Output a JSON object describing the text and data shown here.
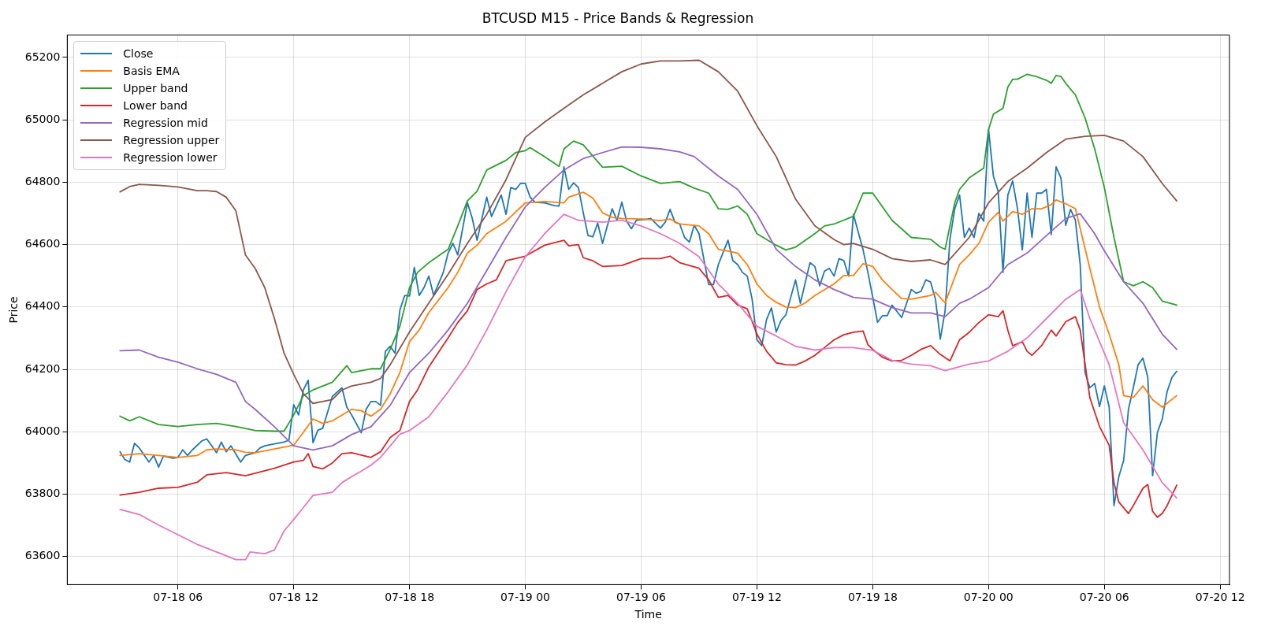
{
  "chart_data": {
    "type": "line",
    "title": "BTCUSD M15 - Price Bands & Regression",
    "xlabel": "Time",
    "ylabel": "Price",
    "xlim": [
      "--07-18T00:16",
      "--07-20T12:29"
    ],
    "ylim": [
      63510,
      65272
    ],
    "xticks": [
      {
        "value": "--07-18T06:00",
        "label": "07-18 06"
      },
      {
        "value": "--07-18T12:00",
        "label": "07-18 12"
      },
      {
        "value": "--07-18T18:00",
        "label": "07-18 18"
      },
      {
        "value": "--07-19T00:00",
        "label": "07-19 00"
      },
      {
        "value": "--07-19T06:00",
        "label": "07-19 06"
      },
      {
        "value": "--07-19T12:00",
        "label": "07-19 12"
      },
      {
        "value": "--07-19T18:00",
        "label": "07-19 18"
      },
      {
        "value": "--07-20T00:00",
        "label": "07-20 00"
      },
      {
        "value": "--07-20T06:00",
        "label": "07-20 06"
      },
      {
        "value": "--07-20T12:00",
        "label": "07-20 12"
      }
    ],
    "yticks": [
      63600,
      63800,
      64000,
      64200,
      64400,
      64600,
      64800,
      65000,
      65200
    ],
    "grid": true,
    "legend": "top left",
    "marker": "none",
    "line_style": "solid",
    "series": [
      {
        "name": "Close",
        "color": "#1f77b4",
        "x": [
          "--07-18T03:00",
          "--07-18T03:15",
          "--07-18T03:30",
          "--07-18T03:45",
          "--07-18T04:00",
          "--07-18T04:30",
          "--07-18T04:45",
          "--07-18T05:00",
          "--07-18T05:15",
          "--07-18T05:45",
          "--07-18T06:00",
          "--07-18T06:15",
          "--07-18T06:30",
          "--07-18T06:45",
          "--07-18T07:15",
          "--07-18T07:30",
          "--07-18T08:00",
          "--07-18T08:15",
          "--07-18T08:30",
          "--07-18T08:45",
          "--07-18T09:15",
          "--07-18T09:30",
          "--07-18T10:00",
          "--07-18T10:15",
          "--07-18T10:30",
          "--07-18T11:00",
          "--07-18T11:30",
          "--07-18T11:45",
          "--07-18T12:00",
          "--07-18T12:15",
          "--07-18T12:30",
          "--07-18T12:45",
          "--07-18T13:00",
          "--07-18T13:15",
          "--07-18T13:30",
          "--07-18T14:00",
          "--07-18T14:30",
          "--07-18T14:45",
          "--07-18T15:00",
          "--07-18T15:30",
          "--07-18T15:45",
          "--07-18T16:00",
          "--07-18T16:15",
          "--07-18T16:30",
          "--07-18T16:45",
          "--07-18T17:00",
          "--07-18T17:15",
          "--07-18T17:30",
          "--07-18T17:45",
          "--07-18T18:00",
          "--07-18T18:15",
          "--07-18T18:30",
          "--07-18T18:45",
          "--07-18T19:00",
          "--07-18T19:15",
          "--07-18T19:45",
          "--07-18T20:00",
          "--07-18T20:15",
          "--07-18T20:30",
          "--07-18T21:00",
          "--07-18T21:15",
          "--07-18T21:30",
          "--07-18T22:00",
          "--07-18T22:15",
          "--07-18T22:45",
          "--07-18T23:00",
          "--07-18T23:15",
          "--07-18T23:30",
          "--07-18T23:45",
          "--07-19T00:00",
          "--07-19T00:15",
          "--07-19T00:30",
          "--07-19T01:00",
          "--07-19T01:30",
          "--07-19T01:45",
          "--07-19T02:00",
          "--07-19T02:15",
          "--07-19T02:30",
          "--07-19T02:45",
          "--07-19T03:00",
          "--07-19T03:15",
          "--07-19T03:30",
          "--07-19T03:45",
          "--07-19T04:00",
          "--07-19T04:15",
          "--07-19T04:30",
          "--07-19T04:45",
          "--07-19T05:00",
          "--07-19T05:15",
          "--07-19T05:30",
          "--07-19T05:45",
          "--07-19T06:15",
          "--07-19T06:30",
          "--07-19T07:00",
          "--07-19T07:15",
          "--07-19T07:30",
          "--07-19T07:45",
          "--07-19T08:00",
          "--07-19T08:15",
          "--07-19T08:30",
          "--07-19T08:45",
          "--07-19T09:00",
          "--07-19T09:30",
          "--07-19T09:45",
          "--07-19T10:00",
          "--07-19T10:30",
          "--07-19T10:45",
          "--07-19T11:00",
          "--07-19T11:15",
          "--07-19T11:30",
          "--07-19T11:45",
          "--07-19T12:00",
          "--07-19T12:15",
          "--07-19T12:30",
          "--07-19T12:45",
          "--07-19T13:00",
          "--07-19T13:15",
          "--07-19T13:30",
          "--07-19T14:00",
          "--07-19T14:15",
          "--07-19T14:45",
          "--07-19T15:00",
          "--07-19T15:15",
          "--07-19T15:30",
          "--07-19T15:45",
          "--07-19T16:00",
          "--07-19T16:15",
          "--07-19T16:30",
          "--07-19T16:45",
          "--07-19T17:00",
          "--07-19T17:30",
          "--07-19T17:45",
          "--07-19T18:15",
          "--07-19T18:30",
          "--07-19T18:45",
          "--07-19T19:00",
          "--07-19T19:30",
          "--07-19T20:00",
          "--07-19T20:15",
          "--07-19T20:30",
          "--07-19T20:45",
          "--07-19T21:00",
          "--07-19T21:15",
          "--07-19T21:30",
          "--07-19T21:45",
          "--07-19T22:00",
          "--07-19T22:15",
          "--07-19T22:30",
          "--07-19T22:45",
          "--07-19T23:00",
          "--07-19T23:15",
          "--07-19T23:30",
          "--07-19T23:45",
          "--07-20T00:00",
          "--07-20T00:15",
          "--07-20T00:30",
          "--07-20T00:45",
          "--07-20T01:00",
          "--07-20T01:15",
          "--07-20T01:30",
          "--07-20T01:45",
          "--07-20T02:00",
          "--07-20T02:15",
          "--07-20T02:30",
          "--07-20T02:45",
          "--07-20T03:00",
          "--07-20T03:15",
          "--07-20T03:30",
          "--07-20T03:45",
          "--07-20T04:00",
          "--07-20T04:15",
          "--07-20T04:30",
          "--07-20T04:45",
          "--07-20T05:00",
          "--07-20T05:15",
          "--07-20T05:30",
          "--07-20T05:45",
          "--07-20T06:00",
          "--07-20T06:15",
          "--07-20T06:30",
          "--07-20T06:45",
          "--07-20T07:00",
          "--07-20T07:15",
          "--07-20T07:30",
          "--07-20T07:45",
          "--07-20T08:00",
          "--07-20T08:15",
          "--07-20T08:30",
          "--07-20T08:45",
          "--07-20T09:00",
          "--07-20T09:15",
          "--07-20T09:30",
          "--07-20T09:45"
        ],
        "values": [
          63936,
          63911,
          63903,
          63963,
          63948,
          63903,
          63924,
          63887,
          63922,
          63915,
          63918,
          63942,
          63924,
          63942,
          63971,
          63977,
          63933,
          63967,
          63936,
          63955,
          63903,
          63924,
          63933,
          63948,
          63955,
          63961,
          63967,
          63973,
          64087,
          64054,
          64134,
          64165,
          63965,
          64005,
          64011,
          64113,
          64141,
          64079,
          64054,
          63997,
          64072,
          64097,
          64097,
          64085,
          64258,
          64274,
          64252,
          64390,
          64437,
          64435,
          64527,
          64437,
          64462,
          64499,
          64437,
          64511,
          64573,
          64604,
          64567,
          64734,
          64684,
          64614,
          64752,
          64690,
          64759,
          64697,
          64783,
          64777,
          64796,
          64796,
          64752,
          64736,
          64734,
          64725,
          64724,
          64849,
          64777,
          64798,
          64783,
          64703,
          64629,
          64625,
          64669,
          64604,
          64660,
          64715,
          64678,
          64736,
          64675,
          64651,
          64678,
          64681,
          64684,
          64653,
          64672,
          64713,
          64672,
          64666,
          64623,
          64608,
          64662,
          64635,
          64472,
          64472,
          64536,
          64614,
          64549,
          64536,
          64511,
          64499,
          64425,
          64295,
          64276,
          64360,
          64397,
          64320,
          64357,
          64375,
          64487,
          64412,
          64542,
          64530,
          64468,
          64515,
          64524,
          64499,
          64555,
          64549,
          64499,
          64697,
          64583,
          64511,
          64351,
          64372,
          64372,
          64406,
          64366,
          64456,
          64444,
          64450,
          64487,
          64480,
          64425,
          64297,
          64388,
          64617,
          64715,
          64759,
          64623,
          64653,
          64623,
          64700,
          64675,
          64969,
          64820,
          64771,
          64511,
          64759,
          64804,
          64715,
          64583,
          64765,
          64623,
          64765,
          64765,
          64777,
          64632,
          64849,
          64814,
          64662,
          64713,
          64678,
          64536,
          64190,
          64141,
          64155,
          64081,
          64147,
          64079,
          63763,
          63856,
          63908,
          64072,
          64141,
          64215,
          64236,
          64175,
          63859,
          63998,
          64041,
          64128,
          64174,
          64194
        ]
      },
      {
        "name": "Basis EMA",
        "color": "#ff7f0e",
        "x": [
          "--07-18T03:00",
          "--07-18T04:00",
          "--07-18T05:00",
          "--07-18T06:00",
          "--07-18T07:00",
          "--07-18T07:30",
          "--07-18T08:00",
          "--07-18T09:00",
          "--07-18T09:30",
          "--07-18T10:00",
          "--07-18T11:00",
          "--07-18T12:00",
          "--07-18T12:30",
          "--07-18T13:00",
          "--07-18T13:30",
          "--07-18T14:00",
          "--07-18T15:00",
          "--07-18T15:30",
          "--07-18T16:00",
          "--07-18T16:30",
          "--07-18T17:00",
          "--07-18T17:30",
          "--07-18T18:00",
          "--07-18T18:30",
          "--07-18T19:00",
          "--07-18T20:00",
          "--07-18T20:30",
          "--07-18T21:00",
          "--07-18T21:30",
          "--07-18T22:00",
          "--07-18T23:00",
          "--07-19T00:00",
          "--07-19T01:00",
          "--07-19T02:00",
          "--07-19T02:15",
          "--07-19T03:00",
          "--07-19T03:30",
          "--07-19T04:00",
          "--07-19T04:30",
          "--07-19T05:00",
          "--07-19T06:00",
          "--07-19T07:00",
          "--07-19T07:30",
          "--07-19T08:00",
          "--07-19T09:00",
          "--07-19T09:30",
          "--07-19T10:00",
          "--07-19T10:30",
          "--07-19T11:00",
          "--07-19T11:30",
          "--07-19T12:00",
          "--07-19T12:30",
          "--07-19T13:00",
          "--07-19T13:30",
          "--07-19T14:00",
          "--07-19T14:30",
          "--07-19T15:00",
          "--07-19T16:00",
          "--07-19T16:30",
          "--07-19T17:00",
          "--07-19T17:30",
          "--07-19T18:00",
          "--07-19T18:30",
          "--07-19T19:00",
          "--07-19T19:30",
          "--07-19T20:00",
          "--07-19T21:00",
          "--07-19T21:15",
          "--07-19T21:45",
          "--07-19T22:30",
          "--07-19T23:00",
          "--07-19T23:30",
          "--07-20T00:00",
          "--07-20T00:30",
          "--07-20T00:45",
          "--07-20T01:15",
          "--07-20T01:45",
          "--07-20T02:15",
          "--07-20T02:45",
          "--07-20T03:15",
          "--07-20T03:30",
          "--07-20T04:00",
          "--07-20T04:30",
          "--07-20T05:15",
          "--07-20T05:45",
          "--07-20T06:15",
          "--07-20T06:45",
          "--07-20T07:00",
          "--07-20T07:30",
          "--07-20T08:00",
          "--07-20T08:30",
          "--07-20T09:00",
          "--07-20T09:45"
        ],
        "values": [
          63924,
          63930,
          63924,
          63918,
          63924,
          63942,
          63945,
          63942,
          63934,
          63933,
          63945,
          63957,
          63998,
          64041,
          64027,
          64035,
          64072,
          64068,
          64050,
          64072,
          64122,
          64190,
          64289,
          64326,
          64382,
          64462,
          64511,
          64573,
          64598,
          64635,
          64675,
          64734,
          64738,
          64734,
          64752,
          64768,
          64749,
          64702,
          64687,
          64684,
          64682,
          64677,
          64682,
          64666,
          64660,
          64635,
          64585,
          64579,
          64573,
          64536,
          64474,
          64437,
          64415,
          64400,
          64398,
          64413,
          64437,
          64474,
          64501,
          64501,
          64539,
          64530,
          64487,
          64456,
          64427,
          64425,
          64437,
          64447,
          64413,
          64536,
          64567,
          64604,
          64672,
          64703,
          64675,
          64706,
          64697,
          64715,
          64715,
          64728,
          64743,
          64731,
          64715,
          64524,
          64400,
          64313,
          64215,
          64116,
          64110,
          64147,
          64103,
          64079,
          64116
        ]
      },
      {
        "name": "Upper band",
        "color": "#2ca02c",
        "x": [
          "--07-18T03:00",
          "--07-18T03:30",
          "--07-18T04:00",
          "--07-18T05:00",
          "--07-18T06:00",
          "--07-18T07:00",
          "--07-18T08:00",
          "--07-18T09:00",
          "--07-18T10:00",
          "--07-18T11:00",
          "--07-18T11:30",
          "--07-18T12:00",
          "--07-18T12:30",
          "--07-18T13:00",
          "--07-18T14:00",
          "--07-18T14:45",
          "--07-18T15:00",
          "--07-18T16:00",
          "--07-18T16:30",
          "--07-18T17:00",
          "--07-18T17:30",
          "--07-18T18:00",
          "--07-18T18:25",
          "--07-18T19:00",
          "--07-18T20:00",
          "--07-18T20:30",
          "--07-18T21:00",
          "--07-18T21:30",
          "--07-18T22:00",
          "--07-18T23:00",
          "--07-18T23:30",
          "--07-19T00:00",
          "--07-19T00:15",
          "--07-19T01:00",
          "--07-19T01:45",
          "--07-19T02:00",
          "--07-19T02:30",
          "--07-19T03:00",
          "--07-19T04:00",
          "--07-19T05:00",
          "--07-19T06:00",
          "--07-19T07:00",
          "--07-19T08:00",
          "--07-19T08:45",
          "--07-19T09:30",
          "--07-19T10:00",
          "--07-19T10:30",
          "--07-19T11:00",
          "--07-19T11:30",
          "--07-19T12:00",
          "--07-19T13:00",
          "--07-19T13:30",
          "--07-19T14:00",
          "--07-19T15:00",
          "--07-19T15:30",
          "--07-19T16:00",
          "--07-19T17:00",
          "--07-19T17:30",
          "--07-19T18:00",
          "--07-19T19:00",
          "--07-19T20:00",
          "--07-19T21:00",
          "--07-19T21:30",
          "--07-19T21:45",
          "--07-19T22:15",
          "--07-19T22:30",
          "--07-19T23:00",
          "--07-19T23:45",
          "--07-20T00:00",
          "--07-20T00:15",
          "--07-20T00:45",
          "--07-20T01:00",
          "--07-20T01:15",
          "--07-20T01:30",
          "--07-20T02:00",
          "--07-20T02:30",
          "--07-20T03:00",
          "--07-20T03:15",
          "--07-20T03:30",
          "--07-20T03:45",
          "--07-20T04:00",
          "--07-20T04:30",
          "--07-20T05:00",
          "--07-20T05:30",
          "--07-20T06:00",
          "--07-20T06:30",
          "--07-20T07:00",
          "--07-20T07:30",
          "--07-20T08:00",
          "--07-20T08:30",
          "--07-20T09:00",
          "--07-20T09:45"
        ],
        "values": [
          64050,
          64035,
          64048,
          64023,
          64017,
          64023,
          64027,
          64017,
          64004,
          64002,
          64002,
          64054,
          64116,
          64134,
          64159,
          64212,
          64190,
          64202,
          64202,
          64264,
          64338,
          64462,
          64511,
          64542,
          64585,
          64660,
          64740,
          64771,
          64839,
          64870,
          64895,
          64901,
          64911,
          64882,
          64851,
          64907,
          64932,
          64920,
          64848,
          64851,
          64820,
          64796,
          64802,
          64781,
          64765,
          64715,
          64713,
          64724,
          64697,
          64635,
          64598,
          64583,
          64592,
          64635,
          64660,
          64666,
          64691,
          64765,
          64765,
          64678,
          64623,
          64617,
          64592,
          64585,
          64734,
          64777,
          64814,
          64845,
          64969,
          65018,
          65037,
          65105,
          65130,
          65130,
          65146,
          65138,
          65127,
          65117,
          65142,
          65139,
          65117,
          65080,
          65006,
          64907,
          64783,
          64623,
          64481,
          64468,
          64481,
          64462,
          64419,
          64406
        ]
      },
      {
        "name": "Lower band",
        "color": "#d62728",
        "x": [
          "--07-18T03:00",
          "--07-18T04:00",
          "--07-18T05:00",
          "--07-18T06:00",
          "--07-18T07:00",
          "--07-18T07:30",
          "--07-18T08:30",
          "--07-18T09:30",
          "--07-18T11:00",
          "--07-18T12:00",
          "--07-18T12:30",
          "--07-18T12:45",
          "--07-18T13:00",
          "--07-18T13:30",
          "--07-18T14:00",
          "--07-18T14:30",
          "--07-18T15:00",
          "--07-18T16:00",
          "--07-18T16:30",
          "--07-18T17:00",
          "--07-18T17:30",
          "--07-18T18:00",
          "--07-18T18:25",
          "--07-18T19:00",
          "--07-18T20:00",
          "--07-18T20:30",
          "--07-18T21:00",
          "--07-18T21:30",
          "--07-18T22:00",
          "--07-18T22:30",
          "--07-18T23:00",
          "--07-19T00:00",
          "--07-19T01:00",
          "--07-19T02:00",
          "--07-19T02:15",
          "--07-19T02:45",
          "--07-19T03:00",
          "--07-19T03:30",
          "--07-19T04:00",
          "--07-19T05:00",
          "--07-19T06:00",
          "--07-19T07:00",
          "--07-19T07:30",
          "--07-19T08:00",
          "--07-19T09:00",
          "--07-19T09:30",
          "--07-19T10:00",
          "--07-19T10:30",
          "--07-19T11:00",
          "--07-19T11:30",
          "--07-19T12:00",
          "--07-19T12:30",
          "--07-19T13:00",
          "--07-19T13:30",
          "--07-19T14:00",
          "--07-19T14:30",
          "--07-19T15:00",
          "--07-19T15:30",
          "--07-19T16:00",
          "--07-19T16:30",
          "--07-19T17:00",
          "--07-19T17:30",
          "--07-19T17:45",
          "--07-19T18:00",
          "--07-19T18:30",
          "--07-19T19:00",
          "--07-19T19:30",
          "--07-19T20:00",
          "--07-19T20:30",
          "--07-19T21:00",
          "--07-19T21:30",
          "--07-19T22:00",
          "--07-19T22:30",
          "--07-19T23:00",
          "--07-19T23:30",
          "--07-20T00:00",
          "--07-20T00:30",
          "--07-20T00:45",
          "--07-20T01:00",
          "--07-20T01:15",
          "--07-20T01:45",
          "--07-20T02:00",
          "--07-20T02:15",
          "--07-20T02:45",
          "--07-20T03:15",
          "--07-20T03:30",
          "--07-20T04:00",
          "--07-20T04:30",
          "--07-20T04:45",
          "--07-20T05:15",
          "--07-20T05:45",
          "--07-20T06:15",
          "--07-20T06:30",
          "--07-20T06:45",
          "--07-20T07:15",
          "--07-20T07:30",
          "--07-20T08:00",
          "--07-20T08:15",
          "--07-20T08:30",
          "--07-20T08:45",
          "--07-20T09:00",
          "--07-20T09:15",
          "--07-20T09:45"
        ],
        "values": [
          63797,
          63806,
          63819,
          63822,
          63838,
          63862,
          63869,
          63859,
          63883,
          63903,
          63908,
          63930,
          63889,
          63881,
          63900,
          63930,
          63933,
          63918,
          63936,
          63982,
          64004,
          64097,
          64134,
          64208,
          64301,
          64350,
          64388,
          64456,
          64474,
          64487,
          64548,
          64563,
          64598,
          64614,
          64596,
          64600,
          64558,
          64548,
          64530,
          64533,
          64555,
          64555,
          64563,
          64542,
          64524,
          64487,
          64431,
          64437,
          64406,
          64394,
          64313,
          64258,
          64221,
          64215,
          64214,
          64227,
          64245,
          64270,
          64295,
          64311,
          64319,
          64323,
          64279,
          64264,
          64239,
          64227,
          64229,
          64245,
          64264,
          64276,
          64248,
          64227,
          64295,
          64319,
          64350,
          64375,
          64369,
          64388,
          64326,
          64276,
          64289,
          64258,
          64245,
          64276,
          64326,
          64307,
          64353,
          64369,
          64326,
          64109,
          64017,
          63957,
          63837,
          63775,
          63738,
          63763,
          63819,
          63831,
          63745,
          63726,
          63738,
          63763,
          63829
        ]
      },
      {
        "name": "Regression mid",
        "color": "#9467bd",
        "x": [
          "--07-18T03:00",
          "--07-18T04:00",
          "--07-18T05:00",
          "--07-18T06:00",
          "--07-18T07:00",
          "--07-18T08:00",
          "--07-18T09:00",
          "--07-18T09:30",
          "--07-18T10:00",
          "--07-18T11:00",
          "--07-18T12:00",
          "--07-18T13:00",
          "--07-18T14:00",
          "--07-18T15:00",
          "--07-18T16:00",
          "--07-18T17:00",
          "--07-18T18:00",
          "--07-18T19:00",
          "--07-18T20:00",
          "--07-18T21:00",
          "--07-18T22:00",
          "--07-18T23:00",
          "--07-19T00:00",
          "--07-19T01:00",
          "--07-19T02:00",
          "--07-19T03:00",
          "--07-19T04:00",
          "--07-19T05:00",
          "--07-19T06:00",
          "--07-19T07:00",
          "--07-19T08:00",
          "--07-19T08:45",
          "--07-19T10:00",
          "--07-19T11:00",
          "--07-19T12:00",
          "--07-19T13:00",
          "--07-19T14:00",
          "--07-19T15:00",
          "--07-19T16:00",
          "--07-19T17:00",
          "--07-19T18:00",
          "--07-19T19:00",
          "--07-19T20:00",
          "--07-19T21:00",
          "--07-19T21:45",
          "--07-19T22:30",
          "--07-19T23:00",
          "--07-20T00:00",
          "--07-20T01:00",
          "--07-20T02:00",
          "--07-20T03:00",
          "--07-20T04:00",
          "--07-20T04:45",
          "--07-20T05:30",
          "--07-20T06:00",
          "--07-20T07:00",
          "--07-20T08:00",
          "--07-20T09:00",
          "--07-20T09:45"
        ],
        "values": [
          64260,
          64262,
          64239,
          64223,
          64202,
          64184,
          64159,
          64097,
          64072,
          64016,
          63955,
          63942,
          63955,
          63991,
          64016,
          64085,
          64190,
          64252,
          64326,
          64412,
          64517,
          64623,
          64721,
          64783,
          64839,
          64876,
          64895,
          64913,
          64912,
          64907,
          64897,
          64882,
          64820,
          64777,
          64697,
          64585,
          64530,
          64487,
          64456,
          64431,
          64425,
          64398,
          64381,
          64381,
          64369,
          64412,
          64425,
          64462,
          64536,
          64573,
          64629,
          64684,
          64699,
          64635,
          64580,
          64481,
          64412,
          64313,
          64264
        ]
      },
      {
        "name": "Regression upper",
        "color": "#8c564b",
        "x": [
          "--07-18T03:00",
          "--07-18T03:30",
          "--07-18T04:00",
          "--07-18T05:00",
          "--07-18T06:00",
          "--07-18T07:00",
          "--07-18T07:30",
          "--07-18T08:00",
          "--07-18T08:30",
          "--07-18T09:00",
          "--07-18T09:30",
          "--07-18T10:00",
          "--07-18T10:30",
          "--07-18T11:00",
          "--07-18T11:30",
          "--07-18T12:00",
          "--07-18T12:30",
          "--07-18T13:00",
          "--07-18T14:00",
          "--07-18T14:30",
          "--07-18T15:00",
          "--07-18T16:00",
          "--07-18T16:30",
          "--07-18T17:00",
          "--07-18T18:00",
          "--07-18T19:00",
          "--07-18T20:00",
          "--07-18T21:00",
          "--07-18T22:00",
          "--07-18T23:00",
          "--07-19T00:00",
          "--07-19T01:00",
          "--07-19T02:00",
          "--07-19T03:00",
          "--07-19T04:00",
          "--07-19T05:00",
          "--07-19T06:00",
          "--07-19T07:00",
          "--07-19T08:00",
          "--07-19T09:00",
          "--07-19T10:00",
          "--07-19T11:00",
          "--07-19T12:00",
          "--07-19T13:00",
          "--07-19T14:00",
          "--07-19T15:00",
          "--07-19T16:00",
          "--07-19T16:30",
          "--07-19T17:00",
          "--07-19T18:00",
          "--07-19T19:00",
          "--07-19T20:00",
          "--07-19T21:00",
          "--07-19T21:45",
          "--07-19T23:00",
          "--07-20T00:00",
          "--07-20T01:00",
          "--07-20T02:00",
          "--07-20T03:00",
          "--07-20T04:00",
          "--07-20T05:00",
          "--07-20T06:00",
          "--07-20T07:00",
          "--07-20T08:00",
          "--07-20T09:00",
          "--07-20T09:45"
        ],
        "values": [
          64769,
          64786,
          64793,
          64790,
          64785,
          64773,
          64773,
          64770,
          64752,
          64709,
          64567,
          64524,
          64462,
          64363,
          64252,
          64184,
          64122,
          64091,
          64103,
          64134,
          64147,
          64159,
          64171,
          64215,
          64320,
          64413,
          64505,
          64604,
          64697,
          64808,
          64944,
          64993,
          65037,
          65080,
          65117,
          65154,
          65179,
          65189,
          65189,
          65191,
          65154,
          65092,
          64981,
          64882,
          64746,
          64660,
          64616,
          64600,
          64604,
          64585,
          64555,
          64546,
          64551,
          64536,
          64623,
          64734,
          64802,
          64845,
          64895,
          64938,
          64947,
          64950,
          64932,
          64882,
          64796,
          64740
        ]
      },
      {
        "name": "Regression lower",
        "color": "#e377c2",
        "x": [
          "--07-18T03:00",
          "--07-18T04:00",
          "--07-18T05:00",
          "--07-18T06:00",
          "--07-18T07:00",
          "--07-18T08:00",
          "--07-18T09:00",
          "--07-18T09:30",
          "--07-18T09:45",
          "--07-18T10:30",
          "--07-18T11:00",
          "--07-18T11:30",
          "--07-18T12:00",
          "--07-18T12:30",
          "--07-18T13:00",
          "--07-18T14:00",
          "--07-18T14:30",
          "--07-18T15:00",
          "--07-18T15:30",
          "--07-18T16:00",
          "--07-18T16:30",
          "--07-18T17:00",
          "--07-18T17:30",
          "--07-18T18:00",
          "--07-18T19:00",
          "--07-18T20:00",
          "--07-18T21:00",
          "--07-18T22:00",
          "--07-18T23:00",
          "--07-19T00:00",
          "--07-19T01:00",
          "--07-19T02:00",
          "--07-19T02:45",
          "--07-19T04:00",
          "--07-19T05:00",
          "--07-19T06:00",
          "--07-19T07:00",
          "--07-19T08:00",
          "--07-19T09:00",
          "--07-19T10:00",
          "--07-19T11:00",
          "--07-19T12:00",
          "--07-19T13:00",
          "--07-19T14:00",
          "--07-19T15:00",
          "--07-19T16:00",
          "--07-19T17:00",
          "--07-19T18:00",
          "--07-19T19:00",
          "--07-19T20:00",
          "--07-19T21:00",
          "--07-19T21:45",
          "--07-19T23:00",
          "--07-20T00:00",
          "--07-20T01:00",
          "--07-20T02:00",
          "--07-20T03:00",
          "--07-20T04:00",
          "--07-20T04:45",
          "--07-20T05:15",
          "--07-20T06:15",
          "--07-20T07:00",
          "--07-20T08:00",
          "--07-20T09:00",
          "--07-20T09:45"
        ],
        "values": [
          63751,
          63735,
          63701,
          63670,
          63639,
          63615,
          63590,
          63590,
          63615,
          63609,
          63621,
          63682,
          63719,
          63757,
          63796,
          63806,
          63837,
          63856,
          63874,
          63893,
          63918,
          63955,
          63992,
          64004,
          64048,
          64128,
          64215,
          64326,
          64449,
          64561,
          64635,
          64697,
          64678,
          64672,
          64678,
          64660,
          64635,
          64604,
          64561,
          64474,
          64412,
          64338,
          64307,
          64274,
          64262,
          64270,
          64270,
          64261,
          64229,
          64217,
          64212,
          64196,
          64217,
          64227,
          64258,
          64301,
          64363,
          64425,
          64456,
          64363,
          64215,
          64029,
          63942,
          63837,
          63788
        ]
      }
    ]
  }
}
